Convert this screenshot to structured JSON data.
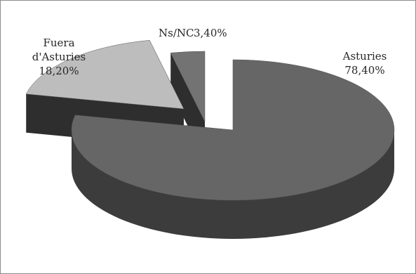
{
  "chart_data": {
    "type": "pie",
    "style": "3d-exploded",
    "title": "",
    "legend": "none",
    "slices": [
      {
        "name": "Asturies",
        "value": 78.4,
        "label": "Asturies",
        "pct_label": "78,40%",
        "color": "#666666",
        "side": "#3c3c3c"
      },
      {
        "name": "Fuera d'Asturies",
        "value": 18.2,
        "label": "Fuera d'Asturies",
        "label_lines": [
          "Fuera",
          "d'Asturies"
        ],
        "pct_label": "18,20%",
        "color": "#bdbdbd",
        "side": "#3c3c3c"
      },
      {
        "name": "Ns/NC",
        "value": 3.4,
        "label": "Ns/NC",
        "pct_label": "3,40%",
        "color": "#737373",
        "side": "#3c3c3c"
      }
    ]
  }
}
